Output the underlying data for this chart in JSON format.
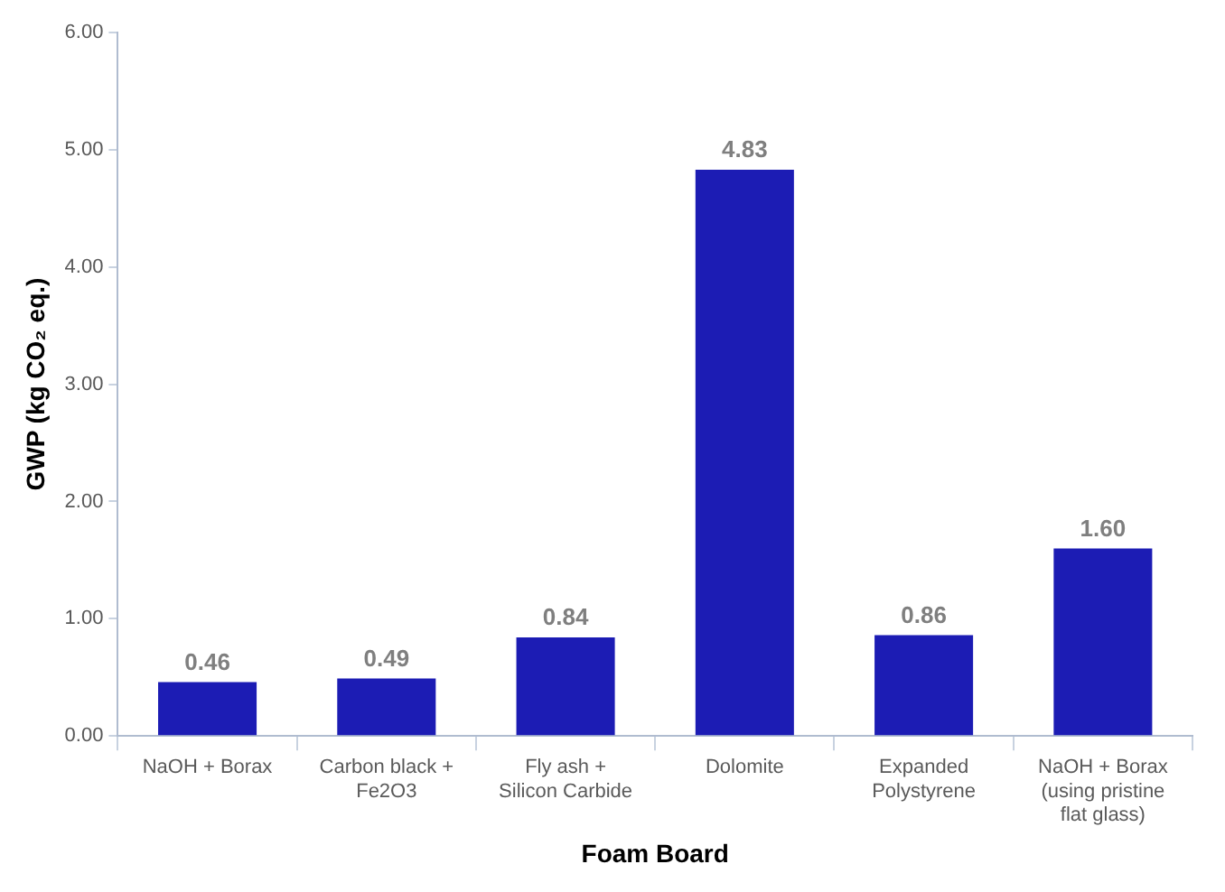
{
  "chart_data": {
    "type": "bar",
    "xlabel": "Foam Board",
    "ylabel": "GWP (kg CO₂ eq.)",
    "categories": [
      "NaOH + Borax",
      "Carbon black + Fe2O3",
      "Fly ash + Silicon Carbide",
      "Dolomite",
      "Expanded Polystyrene",
      "NaOH + Borax (using pristine flat glass)"
    ],
    "values": [
      0.46,
      0.49,
      0.84,
      4.83,
      0.86,
      1.6
    ],
    "value_labels": [
      "0.46",
      "0.49",
      "0.84",
      "4.83",
      "0.86",
      "1.60"
    ],
    "color": "#1c1cb4",
    "ylim": [
      0,
      6
    ],
    "yticks": [
      {
        "value": 0,
        "label": "0.00"
      },
      {
        "value": 1,
        "label": "1.00"
      },
      {
        "value": 2,
        "label": "2.00"
      },
      {
        "value": 3,
        "label": "3.00"
      },
      {
        "value": 4,
        "label": "4.00"
      },
      {
        "value": 5,
        "label": "5.00"
      },
      {
        "value": 6,
        "label": "6.00"
      }
    ],
    "grid": false
  }
}
